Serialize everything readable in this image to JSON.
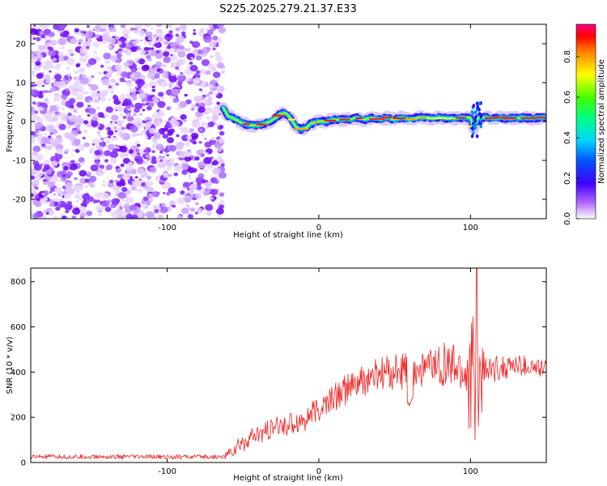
{
  "title": "S225.2025.279.21.37.E33",
  "colors": {
    "series": "#ee2222",
    "frame": "#000000"
  },
  "chart_data": [
    {
      "type": "heatmap",
      "name": "spectrogram",
      "xlabel": "Height of straight line (km)",
      "ylabel": "Frequency (Hz)",
      "xlim": [
        -190,
        150
      ],
      "ylim": [
        -25,
        25
      ],
      "xticks": [
        -100,
        0,
        100
      ],
      "yticks": [
        -20,
        -10,
        0,
        10,
        20
      ],
      "noise_region_x": [
        -190,
        -63
      ],
      "signal_start_x": -63,
      "ridge": {
        "x": [
          -63,
          -60,
          -55,
          -50,
          -45,
          -40,
          -35,
          -30,
          -25,
          -22,
          -18,
          -15,
          -12,
          -8,
          -5,
          0,
          5,
          10,
          15,
          20,
          25,
          30,
          35,
          40,
          45,
          50,
          55,
          60,
          65,
          70,
          75,
          80,
          85,
          90,
          95,
          98,
          100,
          102,
          105,
          110,
          115,
          120,
          125,
          130,
          135,
          140,
          145,
          150
        ],
        "y": [
          3.5,
          1.5,
          0.5,
          -0.5,
          -1,
          -1,
          -0.5,
          0.5,
          2,
          2.2,
          0.5,
          -1.5,
          -2,
          -1.5,
          -0.5,
          0,
          0,
          0.5,
          0.5,
          0.5,
          1,
          0.5,
          1,
          0.5,
          1,
          0.5,
          1,
          0.5,
          1,
          1,
          0.8,
          1,
          0.8,
          0.8,
          1,
          1,
          1,
          -2,
          1,
          1,
          0.8,
          1,
          0.8,
          0.8,
          1,
          0.8,
          1,
          1
        ]
      },
      "colorbar": {
        "label": "Normalized spectral amplitude",
        "ticks": [
          0.0,
          0.2,
          0.4,
          0.6,
          0.8
        ],
        "range": [
          0,
          0.96
        ]
      }
    },
    {
      "type": "line",
      "name": "snr",
      "xlabel": "Height of straight line (km)",
      "ylabel": "SNR (10 * v/v)",
      "xlim": [
        -190,
        150
      ],
      "ylim": [
        0,
        860
      ],
      "xticks": [
        -100,
        0,
        100
      ],
      "yticks": [
        0,
        200,
        400,
        600,
        800
      ],
      "trend": {
        "x": [
          -190,
          -100,
          -63,
          -55,
          -50,
          -40,
          -30,
          -20,
          -10,
          0,
          10,
          20,
          30,
          40,
          50,
          60,
          70,
          80,
          90,
          95,
          100,
          105,
          110,
          120,
          130,
          140,
          150
        ],
        "y": [
          25,
          25,
          25,
          60,
          90,
          120,
          150,
          170,
          190,
          230,
          290,
          330,
          360,
          390,
          400,
          410,
          420,
          430,
          420,
          400,
          380,
          360,
          400,
          420,
          430,
          420,
          410
        ]
      },
      "noise_amplitude": {
        "x": [
          -190,
          -63,
          -55,
          -20,
          20,
          40,
          70,
          95,
          100,
          105,
          110,
          150
        ],
        "y": [
          10,
          10,
          40,
          50,
          70,
          80,
          90,
          120,
          300,
          260,
          60,
          40
        ]
      },
      "features": {
        "dip_x": 60,
        "dip_y": 250,
        "peak_x": 104,
        "peak_y": 860
      }
    }
  ]
}
